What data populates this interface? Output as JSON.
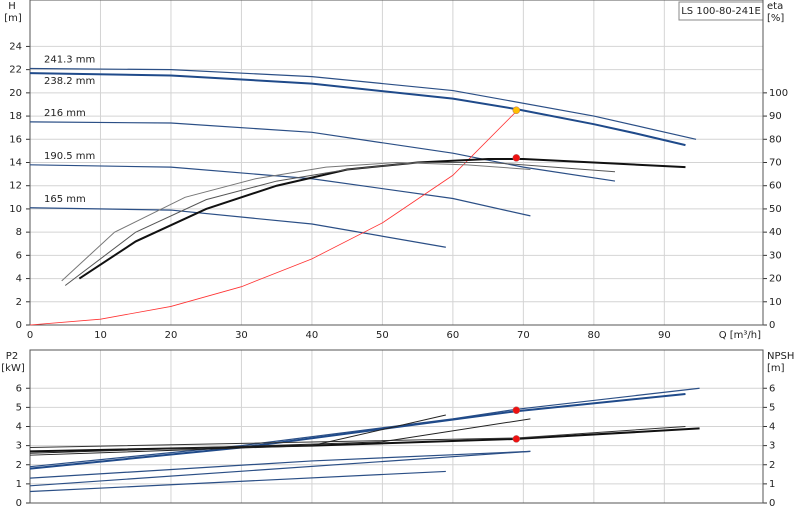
{
  "chart_data": [
    {
      "type": "line",
      "title": "LS 100-80-241E",
      "ylabel": "H",
      "yunit": "[m]",
      "y2label": "eta",
      "y2unit": "[%]",
      "xlabel": "Q [m³/h]",
      "xlim": [
        0,
        104
      ],
      "ylim": [
        0,
        28
      ],
      "y2lim": [
        0,
        140
      ],
      "xticks": [
        0,
        10,
        20,
        30,
        40,
        50,
        60,
        70,
        80,
        90
      ],
      "yticks": [
        0,
        2,
        4,
        6,
        8,
        10,
        12,
        14,
        16,
        18,
        20,
        22,
        24
      ],
      "y2ticks": [
        0,
        10,
        20,
        30,
        40,
        50,
        60,
        70,
        80,
        90,
        100
      ],
      "grid": true,
      "series": [
        {
          "name": "241.3 mm",
          "color": "#2b4f86",
          "width": 1.2,
          "x": [
            0,
            20,
            40,
            60,
            80,
            94.5
          ],
          "values": [
            22.1,
            22.0,
            21.4,
            20.2,
            18.0,
            16.0
          ]
        },
        {
          "name": "238.2 mm",
          "color": "#1f4a8a",
          "width": 2,
          "label_pos": "below",
          "x": [
            0,
            20,
            40,
            60,
            69,
            80,
            86,
            93
          ],
          "values": [
            21.7,
            21.5,
            20.8,
            19.5,
            18.6,
            17.3,
            16.5,
            15.5
          ]
        },
        {
          "name": "216 mm",
          "color": "#2b4f86",
          "width": 1.2,
          "x": [
            0,
            20,
            40,
            60,
            70,
            83
          ],
          "values": [
            17.5,
            17.4,
            16.6,
            14.8,
            13.6,
            12.4
          ]
        },
        {
          "name": "190.5 mm",
          "color": "#2b4f86",
          "width": 1.2,
          "x": [
            0,
            20,
            40,
            60,
            71
          ],
          "values": [
            13.8,
            13.6,
            12.6,
            10.9,
            9.4
          ]
        },
        {
          "name": "165 mm",
          "color": "#2b4f86",
          "width": 1.2,
          "x": [
            0,
            20,
            40,
            59
          ],
          "values": [
            10.1,
            9.9,
            8.7,
            6.7
          ]
        },
        {
          "color": "#ff3333",
          "width": 0.8,
          "x": [
            0,
            10,
            20,
            30,
            40,
            50,
            60,
            69
          ],
          "values": [
            0,
            0.5,
            1.6,
            3.3,
            5.7,
            8.8,
            12.9,
            18.4
          ]
        },
        {
          "color": "#111111",
          "width": 2,
          "axis": "y2",
          "x": [
            7,
            15,
            25,
            35,
            45,
            55,
            65,
            70,
            80,
            93
          ],
          "values": [
            20,
            36,
            50,
            60,
            67,
            70,
            71.5,
            71.5,
            70,
            68
          ]
        },
        {
          "color": "#555555",
          "width": 1,
          "axis": "y2",
          "x": [
            5,
            15,
            25,
            35,
            45,
            55,
            65,
            70,
            83
          ],
          "values": [
            17,
            40,
            54,
            62,
            67,
            70,
            70,
            69,
            66
          ]
        },
        {
          "color": "#777777",
          "width": 1,
          "axis": "y2",
          "x": [
            4.5,
            12,
            22,
            32,
            42,
            52,
            62,
            71
          ],
          "values": [
            19,
            40,
            55,
            63,
            68,
            70,
            69,
            67
          ]
        },
        {
          "color": "#ffc000",
          "style": "points",
          "x": [
            69
          ],
          "values": [
            18.5
          ]
        },
        {
          "color": "#ee1111",
          "style": "points",
          "axis": "y2",
          "x": [
            69
          ],
          "values": [
            72
          ]
        }
      ]
    },
    {
      "type": "line",
      "ylabel": "P2",
      "yunit": "[kW]",
      "y2label": "NPSH",
      "y2unit": "[m]",
      "xlim": [
        0,
        104
      ],
      "ylim": [
        0,
        8
      ],
      "y2lim": [
        0,
        8
      ],
      "xticks": [
        0,
        10,
        20,
        30,
        40,
        50,
        60,
        70,
        80,
        90
      ],
      "show_xtick_labels": false,
      "yticks": [
        0,
        1,
        2,
        3,
        4,
        5,
        6
      ],
      "y2ticks": [
        0,
        1,
        2,
        3,
        4,
        5,
        6
      ],
      "grid": true,
      "series": [
        {
          "color": "#2b4f86",
          "width": 1.2,
          "x": [
            0,
            30,
            60,
            69,
            95
          ],
          "values": [
            1.9,
            3.0,
            4.4,
            4.9,
            6.0
          ]
        },
        {
          "color": "#1f4a8a",
          "width": 2,
          "x": [
            0,
            30,
            69,
            93
          ],
          "values": [
            1.8,
            2.9,
            4.8,
            5.7
          ]
        },
        {
          "color": "#2b4f86",
          "width": 1.2,
          "x": [
            0,
            40,
            71
          ],
          "values": [
            1.3,
            2.2,
            2.7
          ]
        },
        {
          "color": "#2b4f86",
          "width": 1.2,
          "x": [
            0,
            71
          ],
          "values": [
            0.9,
            2.7
          ]
        },
        {
          "color": "#2b4f86",
          "width": 1.2,
          "x": [
            0,
            59
          ],
          "values": [
            0.6,
            1.65
          ]
        },
        {
          "color": "#111111",
          "width": 2,
          "axis": "y2",
          "x": [
            0,
            40,
            69,
            95
          ],
          "values": [
            2.7,
            3.0,
            3.35,
            3.9
          ]
        },
        {
          "color": "#333333",
          "width": 1,
          "axis": "y2",
          "x": [
            0,
            69,
            93
          ],
          "values": [
            2.9,
            3.4,
            4.0
          ]
        },
        {
          "color": "#222222",
          "width": 1,
          "axis": "y2",
          "x": [
            0,
            40,
            59
          ],
          "values": [
            2.5,
            3.0,
            4.6
          ]
        },
        {
          "color": "#222222",
          "width": 1,
          "axis": "y2",
          "x": [
            0,
            50,
            71
          ],
          "values": [
            2.6,
            3.2,
            4.4
          ]
        },
        {
          "color": "#ee1111",
          "style": "points",
          "x": [
            69
          ],
          "values": [
            4.85
          ]
        },
        {
          "color": "#ee1111",
          "style": "points",
          "axis": "y2",
          "x": [
            69
          ],
          "values": [
            3.35
          ]
        }
      ]
    }
  ]
}
